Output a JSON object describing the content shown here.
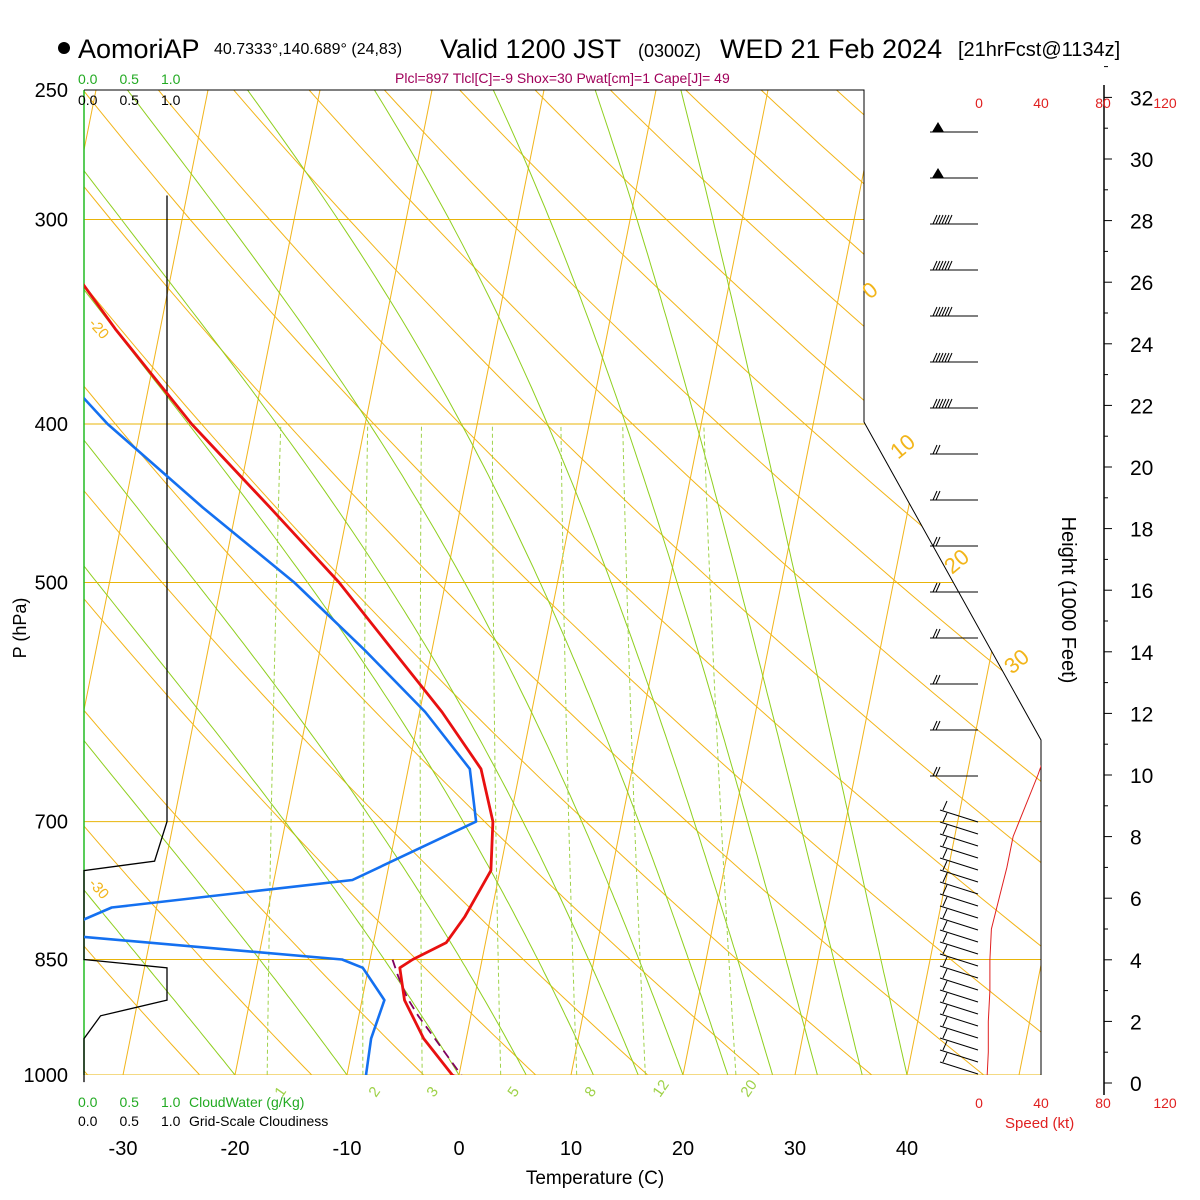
{
  "header": {
    "station": "AomoriAP",
    "coords": "40.7333°,140.689° (24,83)",
    "valid": "Valid 1200 JST",
    "utc": "(0300Z)",
    "date": "WED 21 Feb 2024",
    "forecast": "[21hrFcst@1134z]",
    "indices": "Plcl=897 Tlcl[C]=-9 Shox=30 Pwat[cm]=1 Cape[J]= 49"
  },
  "chart_data": {
    "type": "line",
    "subtype": "skew-T log-P sounding",
    "xlabel": "Temperature (C)",
    "ylabel": "P (hPa)",
    "x_ticks": [
      -30,
      -20,
      -10,
      0,
      10,
      20,
      30,
      40
    ],
    "pressure_levels": [
      250,
      300,
      400,
      500,
      700,
      850,
      1000
    ],
    "pressure_tick_labels": [
      "250",
      "300",
      "400",
      "500",
      "700",
      "850",
      "1000"
    ],
    "height_axis": {
      "label": "Height (1000 Feet)",
      "ticks": [
        0,
        2,
        4,
        6,
        8,
        10,
        12,
        14,
        16,
        18,
        20,
        22,
        24,
        26,
        28,
        30,
        32
      ]
    },
    "speed_axis": {
      "label": "Speed (kt)",
      "ticks": [
        "0",
        "40",
        "80",
        "120"
      ]
    },
    "cloud_axis": {
      "cloudwater_label": "CloudWater (g/Kg)",
      "cloudiness_label": "Grid-Scale Cloudiness",
      "ticks": [
        "0.0",
        "0.5",
        "1.0"
      ]
    },
    "isotherm_labels": [
      "10",
      "0",
      "-10",
      "-20",
      "-30"
    ],
    "theta_labels": [
      "0",
      "10",
      "20",
      "30"
    ],
    "mixing_ratio_labels": [
      "1",
      "2",
      "3",
      "5",
      "8",
      "12",
      "20"
    ],
    "temperature": {
      "name": "Temperature",
      "color": "#e81010",
      "points": [
        [
          1010,
          0.8
        ],
        [
          1000,
          -0.6
        ],
        [
          950,
          -3.8
        ],
        [
          900,
          -6.2
        ],
        [
          860,
          -7.2
        ],
        [
          850,
          -6.2
        ],
        [
          830,
          -3.5
        ],
        [
          800,
          -2.3
        ],
        [
          750,
          -0.8
        ],
        [
          700,
          -1.5
        ],
        [
          650,
          -3.5
        ],
        [
          600,
          -8.0
        ],
        [
          550,
          -13.5
        ],
        [
          500,
          -19.5
        ],
        [
          450,
          -27.0
        ],
        [
          400,
          -35.5
        ],
        [
          350,
          -44.0
        ],
        [
          300,
          -53.0
        ],
        [
          270,
          -58.0
        ]
      ]
    },
    "dewpoint": {
      "name": "Dew Point",
      "color": "#1470f0",
      "points": [
        [
          1010,
          -7.5
        ],
        [
          1000,
          -8.3
        ],
        [
          950,
          -8.5
        ],
        [
          900,
          -8.0
        ],
        [
          860,
          -10.5
        ],
        [
          850,
          -12.5
        ],
        [
          820,
          -39.0
        ],
        [
          790,
          -34.0
        ],
        [
          760,
          -13.0
        ],
        [
          700,
          -3.0
        ],
        [
          650,
          -4.5
        ],
        [
          600,
          -9.5
        ],
        [
          550,
          -16.0
        ],
        [
          500,
          -23.5
        ],
        [
          450,
          -33.0
        ],
        [
          400,
          -43.0
        ],
        [
          350,
          -52.5
        ],
        [
          300,
          -61.0
        ],
        [
          270,
          -66.0
        ]
      ]
    },
    "parcel": {
      "name": "Parcel",
      "color": "#800060",
      "points": [
        [
          1010,
          0.8
        ],
        [
          980,
          -1.0
        ],
        [
          950,
          -2.8
        ],
        [
          920,
          -4.7
        ],
        [
          897,
          -6.0
        ],
        [
          870,
          -7.2
        ],
        [
          850,
          -8.0
        ]
      ]
    },
    "surface_temperature_marker": 1.2,
    "surface_dewpoint_marker": -5.8,
    "wind_speed_profile": [
      [
        0,
        5
      ],
      [
        1,
        6
      ],
      [
        2,
        6
      ],
      [
        3,
        7
      ],
      [
        4,
        7
      ],
      [
        5,
        8
      ],
      [
        6,
        13
      ],
      [
        7,
        18
      ],
      [
        8,
        22
      ],
      [
        9,
        30
      ],
      [
        10,
        38
      ],
      [
        12,
        52
      ],
      [
        14,
        60
      ],
      [
        16,
        65
      ],
      [
        18,
        68
      ],
      [
        20,
        72
      ],
      [
        24,
        76
      ],
      [
        28,
        80
      ],
      [
        31,
        82
      ],
      [
        33,
        84
      ]
    ],
    "cloudiness_profile": [
      [
        1010,
        0.0
      ],
      [
        950,
        0.0
      ],
      [
        920,
        0.2
      ],
      [
        900,
        1.0
      ],
      [
        860,
        1.0
      ],
      [
        850,
        0.0
      ],
      [
        820,
        0.0
      ],
      [
        800,
        0.0
      ],
      [
        750,
        0.0
      ],
      [
        740,
        0.85
      ],
      [
        700,
        1.0
      ],
      [
        290,
        1.0
      ]
    ],
    "grid": true
  }
}
